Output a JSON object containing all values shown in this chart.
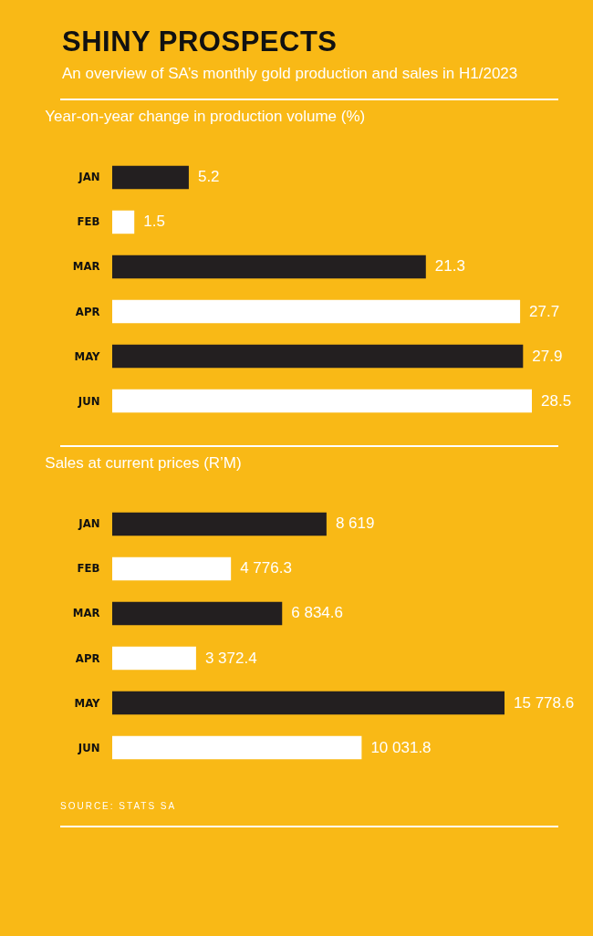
{
  "chart_data": [
    {
      "type": "other",
      "title": "SHINY PROSPECTS",
      "subtitle": "An overview of SA’s monthly gold production and sales in H1/2023"
    },
    {
      "type": "bar",
      "orientation": "horizontal",
      "title": "Year-on-year change in production volume (%)",
      "categories": [
        "JAN",
        "FEB",
        "MAR",
        "APR",
        "MAY",
        "JUN"
      ],
      "values": [
        5.2,
        1.5,
        21.3,
        27.7,
        27.9,
        28.5
      ],
      "colors": [
        "#231f20",
        "#ffffff",
        "#231f20",
        "#ffffff",
        "#231f20",
        "#ffffff"
      ],
      "data_labels": true
    },
    {
      "type": "bar",
      "orientation": "horizontal",
      "title": "Sales at current prices (R’M)",
      "categories": [
        "JAN",
        "FEB",
        "MAR",
        "APR",
        "MAY",
        "JUN"
      ],
      "values": [
        8619,
        4776.3,
        6834.6,
        3372.4,
        15778.6,
        10031.8
      ],
      "value_labels": [
        "8 619",
        "4 776.3",
        "6 834.6",
        "3 372.4",
        "15 778.6",
        "10 031.8"
      ],
      "colors": [
        "#231f20",
        "#ffffff",
        "#231f20",
        "#ffffff",
        "#231f20",
        "#ffffff"
      ],
      "annotations": [
        "SOURCE: STATS SA"
      ]
    }
  ]
}
